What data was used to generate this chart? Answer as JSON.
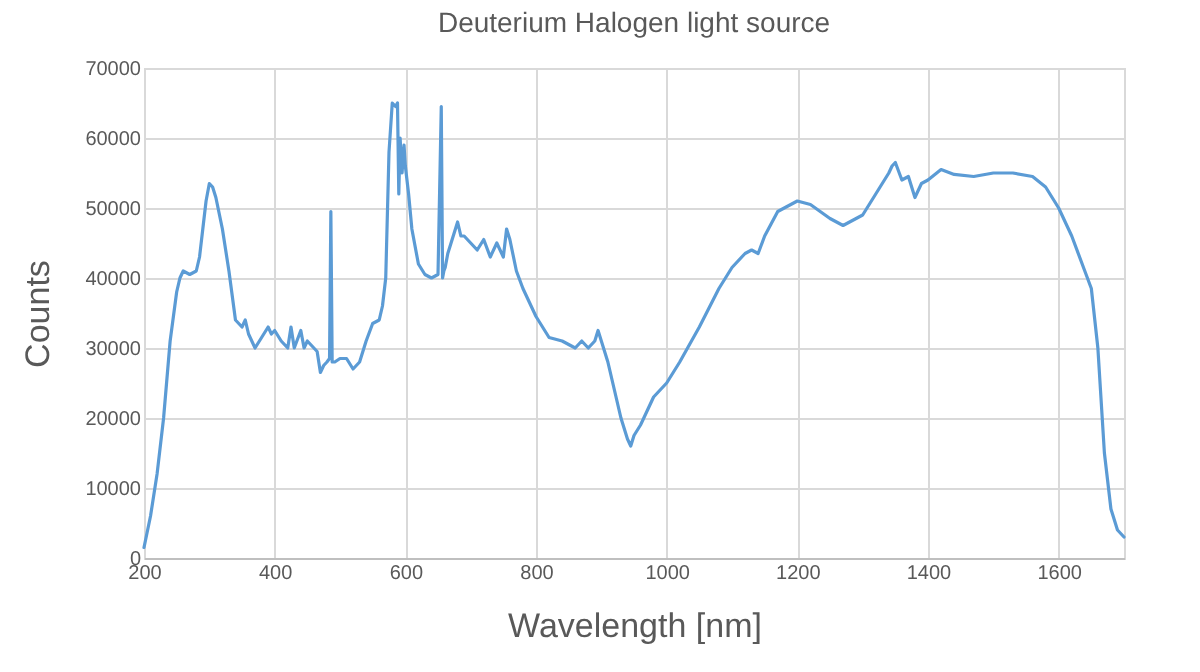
{
  "chart_data": {
    "type": "line",
    "title": "Deuterium Halogen light source",
    "xlabel": "Wavelength [nm]",
    "ylabel": "Counts",
    "xlim": [
      200,
      1700
    ],
    "xticks": [
      200,
      400,
      600,
      800,
      1000,
      1200,
      1400,
      1600
    ],
    "ylim": [
      0,
      70000
    ],
    "yticks": [
      0,
      10000,
      20000,
      30000,
      40000,
      50000,
      60000,
      70000
    ],
    "grid": true,
    "marker": "none",
    "line_style": "solid",
    "series": [
      {
        "color": "#5b9bd5",
        "x": [
          200,
          210,
          220,
          230,
          240,
          250,
          255,
          260,
          270,
          280,
          285,
          290,
          295,
          300,
          305,
          310,
          320,
          330,
          340,
          350,
          355,
          360,
          370,
          380,
          390,
          395,
          400,
          410,
          420,
          425,
          430,
          440,
          445,
          450,
          460,
          465,
          470,
          475,
          480,
          484,
          486,
          488,
          492,
          500,
          510,
          520,
          530,
          540,
          550,
          560,
          565,
          570,
          575,
          580,
          585,
          588,
          590,
          592,
          595,
          598,
          600,
          605,
          610,
          620,
          630,
          640,
          650,
          655,
          657,
          659,
          661,
          665,
          670,
          680,
          685,
          690,
          700,
          710,
          720,
          730,
          740,
          750,
          755,
          760,
          770,
          780,
          790,
          800,
          820,
          840,
          860,
          870,
          880,
          890,
          895,
          900,
          910,
          920,
          930,
          940,
          945,
          950,
          960,
          970,
          980,
          1000,
          1020,
          1050,
          1080,
          1100,
          1120,
          1130,
          1140,
          1150,
          1170,
          1200,
          1220,
          1250,
          1270,
          1300,
          1320,
          1340,
          1345,
          1350,
          1360,
          1370,
          1375,
          1380,
          1385,
          1390,
          1400,
          1420,
          1440,
          1470,
          1500,
          1530,
          1560,
          1580,
          1600,
          1620,
          1640,
          1650,
          1660,
          1670,
          1680,
          1690,
          1700
        ],
        "values": [
          1500,
          6000,
          12000,
          20000,
          31000,
          38000,
          40000,
          41000,
          40500,
          41000,
          43000,
          47000,
          51000,
          53500,
          53000,
          51500,
          47000,
          41000,
          34000,
          33000,
          34000,
          32000,
          30000,
          31500,
          33000,
          32000,
          32500,
          31000,
          30000,
          33000,
          30000,
          32500,
          30000,
          31000,
          30000,
          29500,
          26500,
          27500,
          28000,
          28500,
          49500,
          28000,
          28000,
          28500,
          28500,
          27000,
          28000,
          31000,
          33500,
          34000,
          36000,
          40000,
          58000,
          65000,
          64500,
          65000,
          52000,
          60000,
          55000,
          59000,
          56000,
          52000,
          47000,
          42000,
          40500,
          40000,
          40500,
          64500,
          40000,
          41000,
          41500,
          43500,
          45000,
          48000,
          46000,
          46000,
          45000,
          44000,
          45500,
          43000,
          45000,
          43000,
          47000,
          45500,
          41000,
          38500,
          36500,
          34500,
          31500,
          31000,
          30000,
          31000,
          30000,
          31000,
          32500,
          31000,
          28000,
          24000,
          20000,
          17000,
          16000,
          17500,
          19000,
          21000,
          23000,
          25000,
          28000,
          33000,
          38500,
          41500,
          43500,
          44000,
          43500,
          46000,
          49500,
          51000,
          50500,
          48500,
          47500,
          49000,
          52000,
          55000,
          56000,
          56500,
          54000,
          54500,
          53000,
          51500,
          52500,
          53500,
          54000,
          55500,
          54800,
          54500,
          55000,
          55000,
          54500,
          53000,
          50000,
          46000,
          41000,
          38500,
          30000,
          15000,
          7000,
          4000,
          3000
        ]
      }
    ]
  }
}
